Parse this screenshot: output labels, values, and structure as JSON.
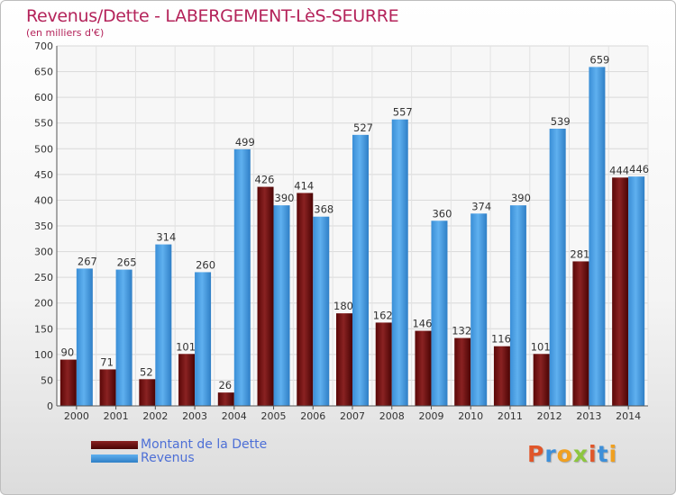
{
  "title": "Revenus/Dette - LABERGEMENT-LèS-SEURRE",
  "subtitle": "(en milliers d'€)",
  "logo_text": "Proxiti",
  "colors": {
    "dette": "#6b0e0e",
    "revenus": "#4aa0e2",
    "title": "#b4235a",
    "legend_text": "#4d6fd6"
  },
  "chart_data": {
    "type": "bar",
    "title": "Revenus/Dette - LABERGEMENT-LèS-SEURRE",
    "subtitle": "(en milliers d'€)",
    "categories": [
      "2000",
      "2001",
      "2002",
      "2003",
      "2004",
      "2005",
      "2006",
      "2007",
      "2008",
      "2009",
      "2010",
      "2011",
      "2012",
      "2013",
      "2014"
    ],
    "series": [
      {
        "name": "Montant de la Dette",
        "values": [
          90,
          71,
          52,
          101,
          26,
          426,
          414,
          180,
          162,
          146,
          132,
          116,
          101,
          281,
          444
        ]
      },
      {
        "name": "Revenus",
        "values": [
          267,
          265,
          314,
          260,
          499,
          390,
          368,
          527,
          557,
          360,
          374,
          390,
          539,
          659,
          446
        ]
      }
    ],
    "ylim": [
      0,
      700
    ],
    "yticks": [
      0,
      50,
      100,
      150,
      200,
      250,
      300,
      350,
      400,
      450,
      500,
      550,
      600,
      650,
      700
    ],
    "grid": true,
    "legend_position": "bottom-left"
  }
}
